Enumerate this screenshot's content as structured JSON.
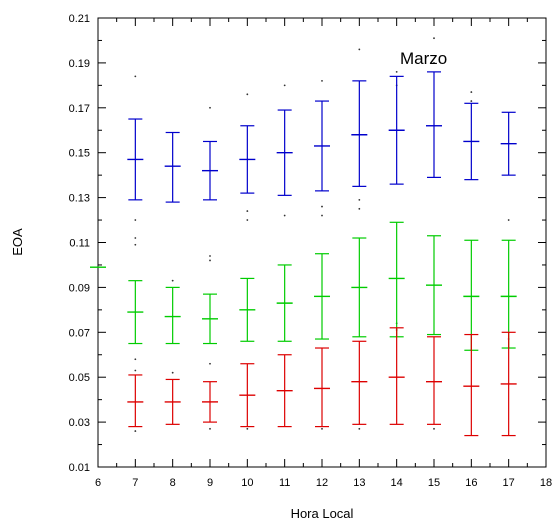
{
  "chart_data": {
    "type": "scatter",
    "xlabel": "Hora Local",
    "ylabel": "EOA",
    "annotation": "Marzo",
    "xlim": [
      6,
      18
    ],
    "ylim": [
      0.01,
      0.21
    ],
    "x_ticks": [
      "6",
      "7",
      "8",
      "9",
      "10",
      "11",
      "12",
      "13",
      "14",
      "15",
      "16",
      "17",
      "18"
    ],
    "y_ticks": [
      "0.01",
      "0.03",
      "0.05",
      "0.07",
      "0.09",
      "0.11",
      "0.13",
      "0.15",
      "0.17",
      "0.19",
      "0.21"
    ],
    "grid": false,
    "series": [
      {
        "color": "#0000cc",
        "points": [
          {
            "x": 7,
            "mean": 0.147,
            "low": 0.129,
            "high": 0.165
          },
          {
            "x": 8,
            "mean": 0.144,
            "low": 0.128,
            "high": 0.159
          },
          {
            "x": 9,
            "mean": 0.142,
            "low": 0.129,
            "high": 0.155
          },
          {
            "x": 10,
            "mean": 0.147,
            "low": 0.132,
            "high": 0.162
          },
          {
            "x": 11,
            "mean": 0.15,
            "low": 0.131,
            "high": 0.169
          },
          {
            "x": 12,
            "mean": 0.153,
            "low": 0.133,
            "high": 0.173
          },
          {
            "x": 13,
            "mean": 0.158,
            "low": 0.135,
            "high": 0.182
          },
          {
            "x": 14,
            "mean": 0.16,
            "low": 0.136,
            "high": 0.184
          },
          {
            "x": 15,
            "mean": 0.162,
            "low": 0.139,
            "high": 0.186
          },
          {
            "x": 16,
            "mean": 0.155,
            "low": 0.138,
            "high": 0.172
          },
          {
            "x": 17,
            "mean": 0.154,
            "low": 0.14,
            "high": 0.168
          }
        ]
      },
      {
        "color": "#00cc00",
        "points": [
          {
            "x": 6,
            "mean": 0.099,
            "low": 0.099,
            "high": 0.099
          },
          {
            "x": 7,
            "mean": 0.079,
            "low": 0.065,
            "high": 0.093
          },
          {
            "x": 8,
            "mean": 0.077,
            "low": 0.065,
            "high": 0.09
          },
          {
            "x": 9,
            "mean": 0.076,
            "low": 0.065,
            "high": 0.087
          },
          {
            "x": 10,
            "mean": 0.08,
            "low": 0.066,
            "high": 0.094
          },
          {
            "x": 11,
            "mean": 0.083,
            "low": 0.066,
            "high": 0.1
          },
          {
            "x": 12,
            "mean": 0.086,
            "low": 0.067,
            "high": 0.105
          },
          {
            "x": 13,
            "mean": 0.09,
            "low": 0.068,
            "high": 0.112
          },
          {
            "x": 14,
            "mean": 0.094,
            "low": 0.068,
            "high": 0.119
          },
          {
            "x": 15,
            "mean": 0.091,
            "low": 0.069,
            "high": 0.113
          },
          {
            "x": 16,
            "mean": 0.086,
            "low": 0.062,
            "high": 0.111
          },
          {
            "x": 17,
            "mean": 0.086,
            "low": 0.063,
            "high": 0.111
          }
        ]
      },
      {
        "color": "#dd0000",
        "points": [
          {
            "x": 7,
            "mean": 0.039,
            "low": 0.028,
            "high": 0.051
          },
          {
            "x": 8,
            "mean": 0.039,
            "low": 0.029,
            "high": 0.049
          },
          {
            "x": 9,
            "mean": 0.039,
            "low": 0.03,
            "high": 0.048
          },
          {
            "x": 10,
            "mean": 0.042,
            "low": 0.028,
            "high": 0.056
          },
          {
            "x": 11,
            "mean": 0.044,
            "low": 0.028,
            "high": 0.06
          },
          {
            "x": 12,
            "mean": 0.045,
            "low": 0.028,
            "high": 0.063
          },
          {
            "x": 13,
            "mean": 0.048,
            "low": 0.029,
            "high": 0.066
          },
          {
            "x": 14,
            "mean": 0.05,
            "low": 0.029,
            "high": 0.072
          },
          {
            "x": 15,
            "mean": 0.048,
            "low": 0.029,
            "high": 0.068
          },
          {
            "x": 16,
            "mean": 0.046,
            "low": 0.024,
            "high": 0.069
          },
          {
            "x": 17,
            "mean": 0.047,
            "low": 0.024,
            "high": 0.07
          }
        ]
      }
    ],
    "scatter_dots": [
      {
        "x": 7,
        "y": 0.184
      },
      {
        "x": 7,
        "y": 0.12
      },
      {
        "x": 7,
        "y": 0.112
      },
      {
        "x": 7,
        "y": 0.109
      },
      {
        "x": 7,
        "y": 0.058
      },
      {
        "x": 7,
        "y": 0.053
      },
      {
        "x": 7,
        "y": 0.026
      },
      {
        "x": 8,
        "y": 0.093
      },
      {
        "x": 8,
        "y": 0.052
      },
      {
        "x": 9,
        "y": 0.17
      },
      {
        "x": 9,
        "y": 0.104
      },
      {
        "x": 9,
        "y": 0.102
      },
      {
        "x": 9,
        "y": 0.056
      },
      {
        "x": 9,
        "y": 0.027
      },
      {
        "x": 10,
        "y": 0.176
      },
      {
        "x": 10,
        "y": 0.124
      },
      {
        "x": 10,
        "y": 0.12
      },
      {
        "x": 10,
        "y": 0.027
      },
      {
        "x": 11,
        "y": 0.18
      },
      {
        "x": 11,
        "y": 0.122
      },
      {
        "x": 12,
        "y": 0.182
      },
      {
        "x": 12,
        "y": 0.126
      },
      {
        "x": 12,
        "y": 0.122
      },
      {
        "x": 12,
        "y": 0.027
      },
      {
        "x": 13,
        "y": 0.196
      },
      {
        "x": 13,
        "y": 0.129
      },
      {
        "x": 13,
        "y": 0.125
      },
      {
        "x": 13,
        "y": 0.027
      },
      {
        "x": 14,
        "y": 0.186
      },
      {
        "x": 14,
        "y": 0.18
      },
      {
        "x": 14,
        "y": 0.074
      },
      {
        "x": 14,
        "y": 0.071
      },
      {
        "x": 15,
        "y": 0.201
      },
      {
        "x": 15,
        "y": 0.19
      },
      {
        "x": 15,
        "y": 0.027
      },
      {
        "x": 16,
        "y": 0.177
      },
      {
        "x": 16,
        "y": 0.173
      },
      {
        "x": 17,
        "y": 0.12
      },
      {
        "x": 17,
        "y": 0.067
      }
    ]
  }
}
